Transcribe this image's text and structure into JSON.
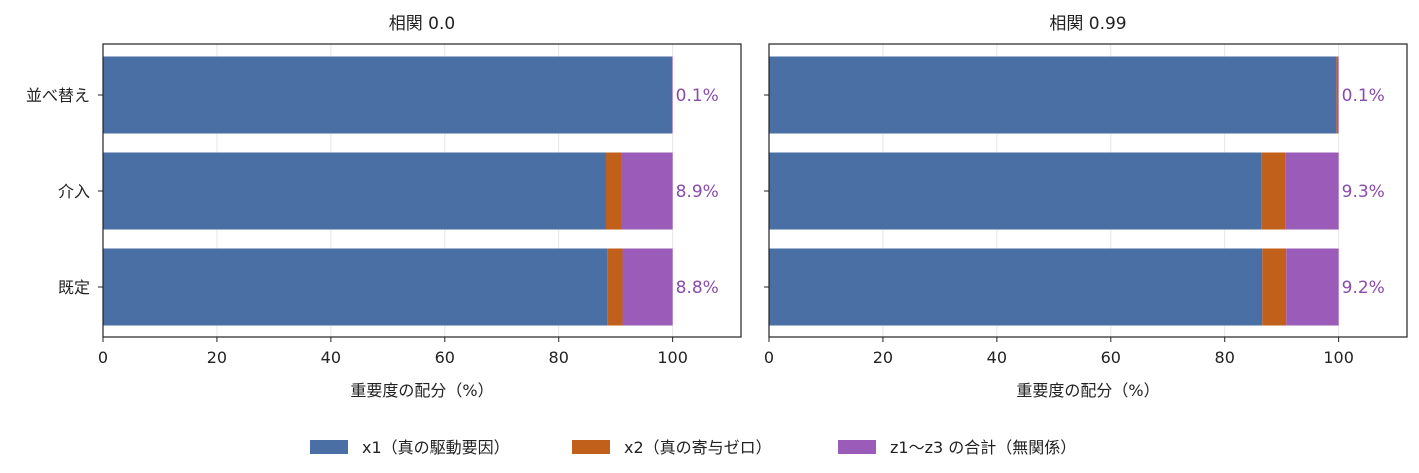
{
  "chart_data": [
    {
      "type": "bar",
      "orientation": "horizontal",
      "stacked": true,
      "title": "相関 0.0",
      "xlabel": "重要度の配分（%）",
      "ylabel": "",
      "xlim": [
        0,
        112
      ],
      "xticks": [
        "0",
        "20",
        "40",
        "60",
        "80",
        "100"
      ],
      "grid": true,
      "categories": [
        "並べ替え",
        "介入",
        "既定"
      ],
      "series": [
        {
          "name": "x1（真の駆動要因）",
          "values": [
            99.9,
            88.3,
            88.5
          ]
        },
        {
          "name": "x2（真の寄与ゼロ）",
          "values": [
            0.0,
            2.8,
            2.7
          ]
        },
        {
          "name": "z1〜z3 の合計（無関係）",
          "values": [
            0.1,
            8.9,
            8.8
          ]
        }
      ],
      "annotations": [
        "0.1%",
        "8.9%",
        "8.8%"
      ]
    },
    {
      "type": "bar",
      "orientation": "horizontal",
      "stacked": true,
      "title": "相関 0.99",
      "xlabel": "重要度の配分（%）",
      "ylabel": "",
      "xlim": [
        0,
        112
      ],
      "xticks": [
        "0",
        "20",
        "40",
        "60",
        "80",
        "100"
      ],
      "grid": true,
      "categories": [
        "並べ替え",
        "介入",
        "既定"
      ],
      "series": [
        {
          "name": "x1（真の駆動要因）",
          "values": [
            99.6,
            86.4,
            86.6
          ]
        },
        {
          "name": "x2（真の寄与ゼロ）",
          "values": [
            0.3,
            4.3,
            4.2
          ]
        },
        {
          "name": "z1〜z3 の合計（無関係）",
          "values": [
            0.1,
            9.3,
            9.2
          ]
        }
      ],
      "annotations": [
        "0.1%",
        "9.3%",
        "9.2%"
      ]
    }
  ],
  "legend": {
    "placement": "bottom",
    "items": [
      {
        "label": "x1（真の駆動要因）",
        "color": "#4a6fa5"
      },
      {
        "label": "x2（真の寄与ゼロ）",
        "color": "#c0601a"
      },
      {
        "label": "z1〜z3 の合計（無関係）",
        "color": "#9b5bb8"
      }
    ]
  },
  "colors": {
    "series": [
      "#4a6fa5",
      "#c0601a",
      "#9b5bb8"
    ],
    "annotation": "#8a4bab",
    "grid": "#e6e6e6"
  }
}
